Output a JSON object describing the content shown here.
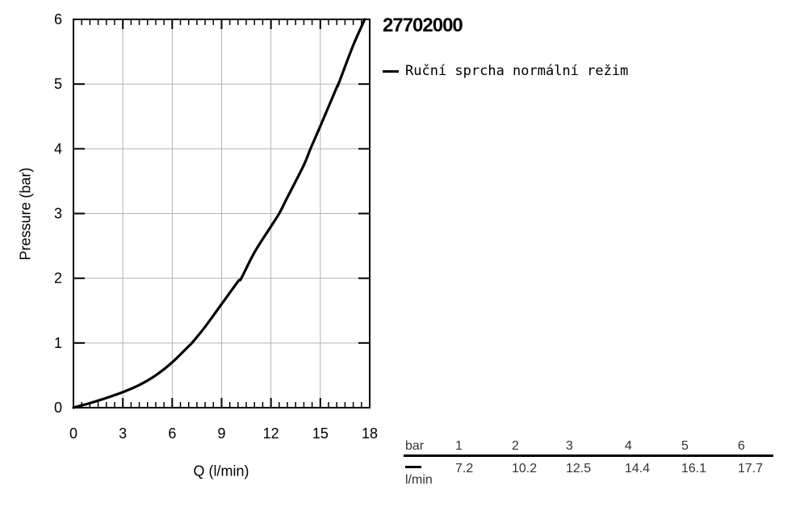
{
  "title": "27702000",
  "legend": {
    "label": "Ruční sprcha normální režim",
    "color": "#000000"
  },
  "chart_data": {
    "type": "line",
    "xlabel": "Q (l/min)",
    "ylabel": "Pressure (bar)",
    "xlim": [
      0,
      18
    ],
    "ylim": [
      0,
      6
    ],
    "xticks": [
      "0",
      "3",
      "6",
      "9",
      "12",
      "15",
      "18"
    ],
    "yticks": [
      "0",
      "1",
      "2",
      "3",
      "4",
      "5",
      "6"
    ],
    "grid": true,
    "legend_position": "right-top",
    "series": [
      {
        "name": "Ruční sprcha normální režim",
        "color": "#000000",
        "x": [
          0,
          1,
          2,
          3,
          4,
          5,
          6,
          7,
          7.2,
          8,
          9,
          10,
          10.2,
          11,
          12,
          12.5,
          13,
          14,
          14.4,
          15,
          16,
          16.1,
          17,
          17.7
        ],
        "y": [
          0,
          0.07,
          0.15,
          0.24,
          0.35,
          0.5,
          0.7,
          0.95,
          1.0,
          1.25,
          1.6,
          1.95,
          2.0,
          2.4,
          2.8,
          3.0,
          3.25,
          3.75,
          4.0,
          4.35,
          4.95,
          5.0,
          5.6,
          6.0
        ]
      }
    ]
  },
  "table": {
    "header_label": "bar",
    "row_label": "l/min",
    "columns": [
      "1",
      "2",
      "3",
      "4",
      "5",
      "6"
    ],
    "values": [
      "7.2",
      "10.2",
      "12.5",
      "14.4",
      "16.1",
      "17.7"
    ]
  }
}
